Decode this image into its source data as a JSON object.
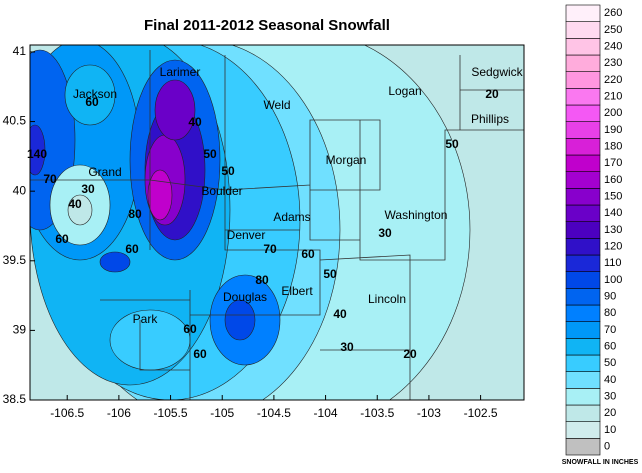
{
  "title": "Final 2011-2012 Seasonal Snowfall",
  "xlim": [
    -106.86,
    -102.08
  ],
  "ylim": [
    38.5,
    41.05
  ],
  "xticks": [
    -106.5,
    -106,
    -105.5,
    -105,
    -104.5,
    -104,
    -103.5,
    -103,
    -102.5
  ],
  "yticks": [
    {
      "value": 38.5,
      "label": "38.5"
    },
    {
      "value": 39,
      "label": "39"
    },
    {
      "value": 39.5,
      "label": "39.5"
    },
    {
      "value": 40,
      "label": "40"
    },
    {
      "value": 40.5,
      "label": "40.5"
    },
    {
      "value": 41,
      "label": "41"
    }
  ],
  "counties": [
    "Larimer",
    "Jackson",
    "Weld",
    "Logan",
    "Sedgwick",
    "Phillips",
    "Morgan",
    "Grand",
    "Boulder",
    "Adams",
    "Washington",
    "Denver",
    "Elbert",
    "Douglas",
    "Lincoln",
    "Park"
  ],
  "contour_labels": [
    60,
    140,
    70,
    30,
    40,
    60,
    80,
    50,
    40,
    70,
    60,
    50,
    60,
    80,
    50,
    40,
    30,
    20,
    30,
    60,
    60,
    20,
    50
  ],
  "legend": {
    "title": "SNOWFALL IN INCHES",
    "levels": [
      0,
      10,
      20,
      30,
      40,
      50,
      60,
      70,
      80,
      90,
      100,
      110,
      120,
      130,
      140,
      150,
      160,
      170,
      180,
      190,
      200,
      210,
      220,
      230,
      240,
      250,
      260
    ],
    "colors": [
      "#c0c0c0",
      "#d0ecec",
      "#bfe8e8",
      "#a8f0f5",
      "#70e0ff",
      "#38ccff",
      "#10b4f4",
      "#0098f8",
      "#0080ff",
      "#0064f0",
      "#0048e8",
      "#1a28d8",
      "#3010c8",
      "#4c00c0",
      "#6a00c8",
      "#8800cc",
      "#a400d0",
      "#c000cc",
      "#d820d8",
      "#e840e8",
      "#f458f4",
      "#fa78f0",
      "#ff96e0",
      "#ffacdc",
      "#ffc4e6",
      "#ffdaf0",
      "#fff0fa"
    ]
  }
}
